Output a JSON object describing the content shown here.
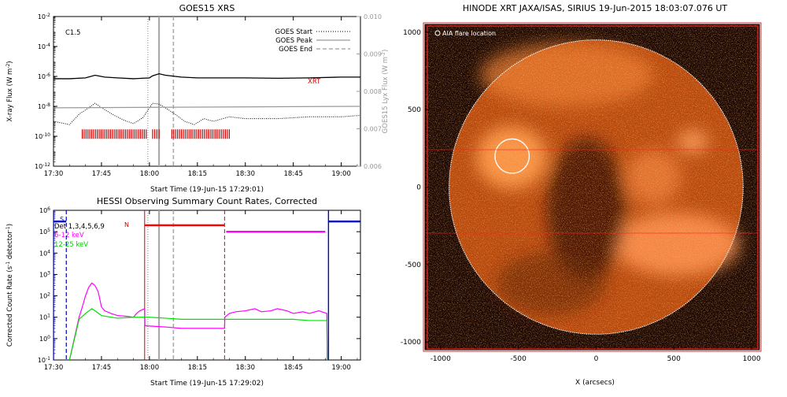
{
  "chart_data": [
    {
      "type": "line",
      "title": "GOES15 XRS",
      "xlabel": "Start Time (19-Jun-15 17:29:01)",
      "ylabel": "X-ray Flux (W m",
      "ylabel_sup": "-2",
      "ylabel_end": ")",
      "y2label": "GOES15 Lyx Flux (W m",
      "y2label_sup": "-2",
      "y2label_end": ")",
      "class_label": "C1.5",
      "xrt_label": "XRT",
      "xlim": [
        "17:30",
        "19:06"
      ],
      "x_ticks": [
        "17:30",
        "17:45",
        "18:00",
        "18:15",
        "18:30",
        "18:45",
        "19:00"
      ],
      "yscale": "log",
      "ylim": [
        1e-12,
        0.01
      ],
      "y_ticks": [
        {
          "base": "10",
          "exp": "-12",
          "value": 1e-12
        },
        {
          "base": "10",
          "exp": "-10",
          "value": 1e-10
        },
        {
          "base": "10",
          "exp": "-8",
          "value": 1e-08
        },
        {
          "base": "10",
          "exp": "-6",
          "value": 1e-06
        },
        {
          "base": "10",
          "exp": "-4",
          "value": 0.0001
        },
        {
          "base": "10",
          "exp": "-2",
          "value": 0.01
        }
      ],
      "y2lim": [
        0.006,
        0.01
      ],
      "y2_ticks": [
        "0.006",
        "0.007",
        "0.008",
        "0.009",
        "0.010"
      ],
      "legend": {
        "placement": "top-right",
        "entries": [
          {
            "label": "GOES Start",
            "style": "dotted"
          },
          {
            "label": "GOES Peak",
            "style": "solid"
          },
          {
            "label": "GOES End",
            "style": "dashed"
          }
        ]
      },
      "markers": {
        "goes_start": "17:59.5",
        "goes_peak": "18:03",
        "goes_end": "18:07.5"
      },
      "series": [
        {
          "key": "long",
          "style": "solid-black",
          "x": [
            "17:30",
            "17:35",
            "17:40",
            "17:43",
            "17:46",
            "17:50",
            "17:55",
            "18:00",
            "18:01",
            "18:03",
            "18:05",
            "18:10",
            "18:15",
            "18:20",
            "18:30",
            "18:40",
            "18:50",
            "19:00",
            "19:06"
          ],
          "y": [
            7e-07,
            7e-07,
            8e-07,
            1.2e-06,
            9e-07,
            8e-07,
            7e-07,
            8e-07,
            1.1e-06,
            1.5e-06,
            1.2e-06,
            9e-07,
            8e-07,
            8e-07,
            8e-07,
            7.5e-07,
            8e-07,
            9e-07,
            9e-07
          ]
        },
        {
          "key": "short",
          "style": "dotted-black",
          "x": [
            "17:30",
            "17:35",
            "17:38",
            "17:41",
            "17:43",
            "17:46",
            "17:49",
            "17:52",
            "17:55",
            "17:58",
            "18:00",
            "18:01",
            "18:03",
            "18:05",
            "18:08",
            "18:11",
            "18:14",
            "18:17",
            "18:20",
            "18:25",
            "18:30",
            "18:40",
            "18:50",
            "19:00",
            "19:06"
          ],
          "y": [
            1e-09,
            6e-10,
            3e-09,
            8e-09,
            1.6e-08,
            6e-09,
            2.5e-09,
            1.2e-09,
            7e-10,
            1.8e-09,
            8e-09,
            1.6e-08,
            1.4e-08,
            8e-09,
            3e-09,
            1e-09,
            6e-10,
            1.5e-09,
            1e-09,
            2e-09,
            1.5e-09,
            1.5e-09,
            2e-09,
            2e-09,
            2.5e-09
          ]
        },
        {
          "key": "lya",
          "axis": "y2",
          "style": "solid-gray",
          "x": [
            "17:30",
            "19:06"
          ],
          "y": [
            0.00756,
            0.0076
          ]
        }
      ],
      "xrt_segments": [
        [
          "17:39",
          "17:59"
        ],
        [
          "18:01",
          "18:03"
        ],
        [
          "18:07",
          "18:25"
        ]
      ]
    },
    {
      "type": "line",
      "title": "HESSI Observing Summary Count Rates, Corrected",
      "xlabel": "Start Time (19-Jun-15 17:29:02)",
      "ylabel": "Corrected Count Rate (s",
      "ylabel_sup": "-1",
      "ylabel_mid": " detector",
      "ylabel_sup2": "-1",
      "ylabel_end": ")",
      "xlim": [
        "17:30",
        "19:06"
      ],
      "x_ticks": [
        "17:30",
        "17:45",
        "18:00",
        "18:15",
        "18:30",
        "18:45",
        "19:00"
      ],
      "yscale": "log",
      "ylim": [
        0.1,
        1000000.0
      ],
      "y_ticks": [
        {
          "base": "10",
          "exp": "-1",
          "value": 0.1
        },
        {
          "base": "10",
          "exp": "0",
          "value": 1
        },
        {
          "base": "10",
          "exp": "1",
          "value": 10
        },
        {
          "base": "10",
          "exp": "2",
          "value": 100
        },
        {
          "base": "10",
          "exp": "3",
          "value": 1000
        },
        {
          "base": "10",
          "exp": "4",
          "value": 10000
        },
        {
          "base": "10",
          "exp": "5",
          "value": 100000
        },
        {
          "base": "10",
          "exp": "6",
          "value": 1000000
        }
      ],
      "legend_text": [
        "Det 1,3,4,5,6,9",
        "6-12 keV",
        "12-25 keV"
      ],
      "flag_labels": {
        "saa": "S",
        "night": "N"
      },
      "markers": {
        "goes_start": "17:59.5",
        "goes_peak": "18:03",
        "goes_end": "18:07.5",
        "saa_end": "17:34",
        "night_start": "17:58.5",
        "night_end": "18:23.5",
        "saa2_start": "18:56"
      },
      "series": [
        {
          "name": "6-12 keV",
          "color": "#ff00ff",
          "x": [
            "17:35",
            "17:38",
            "17:39",
            "17:40",
            "17:41",
            "17:42",
            "17:43",
            "17:44",
            "17:45",
            "17:46",
            "17:48",
            "17:50",
            "17:53",
            "17:55",
            "17:56",
            "17:57",
            "17:58.5",
            "17:58.6",
            "18:05",
            "18:10",
            "18:15",
            "18:20",
            "18:23.5",
            "18:23.6",
            "18:25",
            "18:27",
            "18:30",
            "18:33",
            "18:35",
            "18:38",
            "18:40",
            "18:43",
            "18:45",
            "18:48",
            "18:50",
            "18:53",
            "18:55.5",
            "18:55.6"
          ],
          "y": [
            0.1,
            10,
            30,
            100,
            250,
            400,
            300,
            150,
            30,
            20,
            15,
            12,
            11,
            10,
            15,
            20,
            25,
            4,
            3.5,
            3,
            3,
            3,
            3,
            10,
            15,
            18,
            20,
            25,
            18,
            20,
            25,
            20,
            15,
            18,
            15,
            20,
            15,
            0.1
          ]
        },
        {
          "name": "12-25 keV",
          "color": "#00e000",
          "x": [
            "17:35",
            "17:38",
            "17:40",
            "17:42",
            "17:43",
            "17:45",
            "17:48",
            "17:50",
            "17:55",
            "17:58",
            "18:00",
            "18:05",
            "18:10",
            "18:15",
            "18:20",
            "18:25",
            "18:30",
            "18:35",
            "18:40",
            "18:45",
            "18:50",
            "18:55.5",
            "18:55.6"
          ],
          "y": [
            0.1,
            8,
            15,
            25,
            20,
            12,
            10,
            9,
            10,
            10,
            10,
            9,
            8,
            8,
            8,
            8,
            8,
            8,
            8,
            8,
            7,
            7,
            0.1
          ]
        },
        {
          "name": "flags",
          "color": "#ff0000",
          "x": [
            "17:58.5",
            "18:23.5"
          ],
          "y": [
            200000,
            200000
          ]
        }
      ],
      "flag_bars": [
        {
          "color": "#0000c0",
          "x": [
            "17:30",
            "17:34"
          ],
          "y": 300000
        },
        {
          "color": "#ff00ff",
          "x": [
            "18:24",
            "18:55"
          ],
          "y": 100000
        },
        {
          "color": "#0000c0",
          "x": [
            "18:56",
            "19:06"
          ],
          "y": 300000
        }
      ]
    },
    {
      "type": "heatmap",
      "title": "HINODE XRT JAXA/ISAS, SIRIUS 19-Jun-2015 18:03:07.076 UT",
      "xlabel": "X (arcsecs)",
      "ylabel": "",
      "xlim": [
        -1100,
        1050
      ],
      "ylim": [
        -1050,
        1050
      ],
      "x_ticks": [
        "-1000",
        "-500",
        "0",
        "500",
        "1000"
      ],
      "y_ticks": [
        "1000",
        "500",
        "0",
        "-500",
        "-1000"
      ],
      "annotation": "AIA flare location",
      "limb_radius": 945,
      "flare_location": {
        "x": -540,
        "y": 200,
        "r": 110
      },
      "colors": {
        "background": "#1a0600",
        "sun": "#c05010",
        "bright": "#ffc890",
        "limb": "#ffffff",
        "frame": "#ff0000"
      }
    }
  ]
}
